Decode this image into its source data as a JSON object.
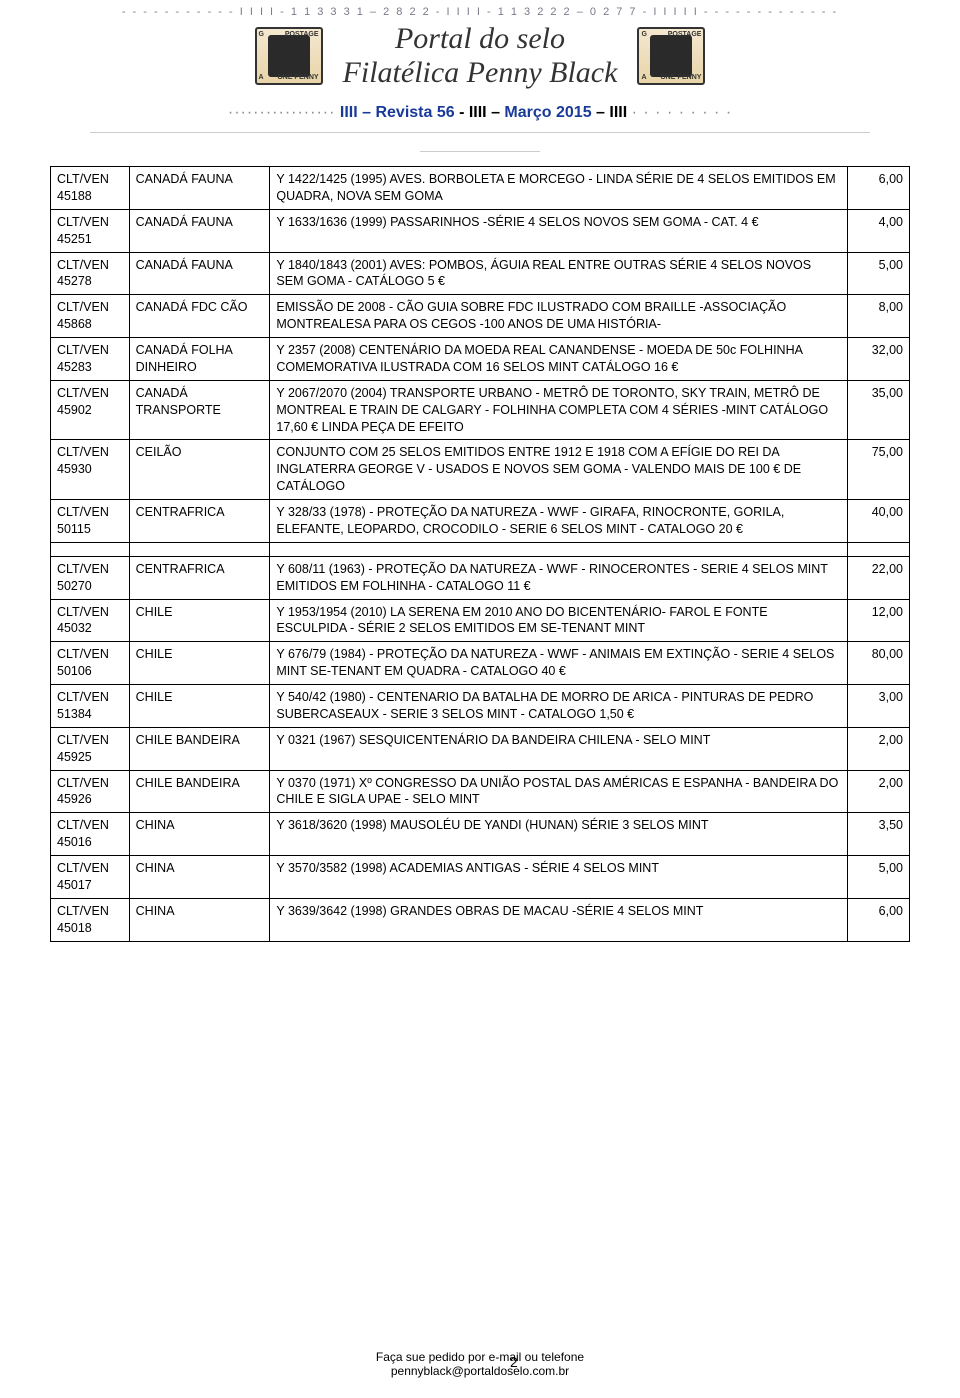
{
  "top_dotted": "- - - - -  - - - -         - - I I I I - 1 1  3 3 3 1 – 2 8 2 2  -  I I I I  -  1 1  3 2 2 2 – 0 2 7 7  - I I I I I  - - - - - - - - - - - - -",
  "header": {
    "title_line1": "Portal do selo",
    "title_line2": "Filatélica Penny Black",
    "stamp_tl": "G",
    "stamp_tr": "POSTAGE",
    "stamp_bl": "A",
    "stamp_br": "ONE PENNY"
  },
  "issue": {
    "dots_left": "·················",
    "part1": "IIII – Revista 56",
    "part2": "  - IIII – ",
    "part3": "Março 2015",
    "part4": "– IIII",
    "dots_right": "· · · · · · · · ·"
  },
  "table": {
    "col1_header": "",
    "rows": [
      {
        "c1": "CLT/VEN 45188",
        "c2": "CANADÁ FAUNA",
        "c3": "Y 1422/1425 (1995) AVES. BORBOLETA E MORCEGO - LINDA SÉRIE DE 4 SELOS EMITIDOS EM QUADRA, NOVA SEM GOMA",
        "c4": "6,00"
      },
      {
        "c1": "CLT/VEN 45251",
        "c2": "CANADÁ FAUNA",
        "c3": "Y 1633/1636 (1999) PASSARINHOS -SÉRIE 4 SELOS NOVOS SEM GOMA - CAT. 4 €",
        "c4": "4,00"
      },
      {
        "c1": "CLT/VEN 45278",
        "c2": "CANADÁ FAUNA",
        "c3": "Y 1840/1843 (2001) AVES: POMBOS, ÁGUIA REAL ENTRE OUTRAS SÉRIE 4 SELOS NOVOS SEM GOMA - CATÁLOGO 5 €",
        "c4": "5,00"
      },
      {
        "c1": "CLT/VEN 45868",
        "c2": "CANADÁ FDC CÃO",
        "c3": "EMISSÃO DE 2008 - CÃO GUIA SOBRE FDC ILUSTRADO COM BRAILLE -ASSOCIAÇÃO MONTREALESA PARA OS CEGOS -100 ANOS DE UMA HISTÓRIA-",
        "c4": "8,00"
      },
      {
        "c1": "CLT/VEN 45283",
        "c2": "CANADÁ FOLHA DINHEIRO",
        "c3": "Y 2357 (2008) CENTENÁRIO DA MOEDA REAL CANANDENSE - MOEDA DE 50c  FOLHINHA COMEMORATIVA  ILUSTRADA COM 16 SELOS MINT CATÁLOGO 16 €",
        "c4": "32,00"
      },
      {
        "c1": "CLT/VEN 45902",
        "c2": "CANADÁ TRANSPORTE",
        "c3": "Y 2067/2070 (2004) TRANSPORTE URBANO - METRÔ DE TORONTO, SKY TRAIN, METRÔ DE MONTREAL E TRAIN DE CALGARY - FOLHINHA COMPLETA COM 4 SÉRIES -MINT CATÁLOGO 17,60 € LINDA PEÇA DE EFEITO",
        "c4": "35,00"
      },
      {
        "c1": "CLT/VEN 45930",
        "c2": "CEILÃO",
        "c3": "CONJUNTO COM 25 SELOS EMITIDOS ENTRE 1912 E 1918 COM A EFÍGIE DO REI DA INGLATERRA GEORGE V - USADOS E NOVOS SEM GOMA - VALENDO MAIS DE 100 € DE CATÁLOGO",
        "c4": "75,00"
      },
      {
        "c1": "CLT/VEN 50115",
        "c2": "CENTRAFRICA",
        "c3": "Y 328/33 (1978) - PROTEÇÃO DA NATUREZA - WWF - GIRAFA, RINOCRONTE, GORILA, ELEFANTE, LEOPARDO, CROCODILO - SERIE 6 SELOS MINT - CATALOGO 20 €",
        "c4": "40,00"
      }
    ],
    "rows2": [
      {
        "c1": "CLT/VEN 50270",
        "c2": "CENTRAFRICA",
        "c3": "Y 608/11 (1963) - PROTEÇÃO DA NATUREZA - WWF - RINOCERONTES - SERIE 4 SELOS MINT EMITIDOS EM FOLHINHA - CATALOGO 11 €",
        "c4": "22,00"
      },
      {
        "c1": "CLT/VEN 45032",
        "c2": "CHILE",
        "c3": "Y 1953/1954 (2010) LA SERENA EM 2010 ANO DO BICENTENÁRIO- FAROL E FONTE ESCULPIDA - SÉRIE 2 SELOS EMITIDOS EM SE-TENANT MINT",
        "c4": "12,00"
      },
      {
        "c1": "CLT/VEN 50106",
        "c2": "CHILE",
        "c3": "Y 676/79 (1984) - PROTEÇÃO DA NATUREZA - WWF - ANIMAIS EM EXTINÇÃO - SERIE 4 SELOS MINT SE-TENANT EM QUADRA - CATALOGO 40 €",
        "c4": "80,00"
      },
      {
        "c1": "CLT/VEN 51384",
        "c2": "CHILE",
        "c3": "Y 540/42 (1980) - CENTENARIO DA BATALHA DE MORRO DE ARICA - PINTURAS DE PEDRO SUBERCASEAUX - SERIE 3 SELOS MINT - CATALOGO 1,50 €",
        "c4": "3,00"
      },
      {
        "c1": "CLT/VEN 45925",
        "c2": "CHILE BANDEIRA",
        "c3": "Y 0321 (1967) SESQUICENTENÁRIO DA BANDEIRA CHILENA - SELO MINT",
        "c4": "2,00"
      },
      {
        "c1": "CLT/VEN 45926",
        "c2": "CHILE BANDEIRA",
        "c3": "Y 0370 (1971) Xº CONGRESSO DA UNIÃO POSTAL DAS AMÉRICAS E ESPANHA - BANDEIRA DO CHILE E SIGLA UPAE - SELO MINT",
        "c4": "2,00"
      },
      {
        "c1": "CLT/VEN 45016",
        "c2": "CHINA",
        "c3": "Y 3618/3620 (1998) MAUSOLÉU DE YANDI (HUNAN) SÉRIE 3 SELOS MINT",
        "c4": "3,50"
      },
      {
        "c1": "CLT/VEN 45017",
        "c2": "CHINA",
        "c3": "Y 3570/3582 (1998) ACADEMIAS ANTIGAS - SÉRIE 4 SELOS MINT",
        "c4": "5,00"
      },
      {
        "c1": "CLT/VEN 45018",
        "c2": "CHINA",
        "c3": "Y 3639/3642 (1998) GRANDES OBRAS DE MACAU -SÉRIE 4 SELOS MINT",
        "c4": "6,00"
      }
    ]
  },
  "footer": {
    "line1": "Faça sue pedido por e-mail ou telefone",
    "line2": "pennyblack@portaldoselo.com.br",
    "page": "2"
  },
  "colors": {
    "blue": "#1a3a9a",
    "text": "#000000",
    "border": "#000000",
    "gray_dots": "#888888"
  }
}
